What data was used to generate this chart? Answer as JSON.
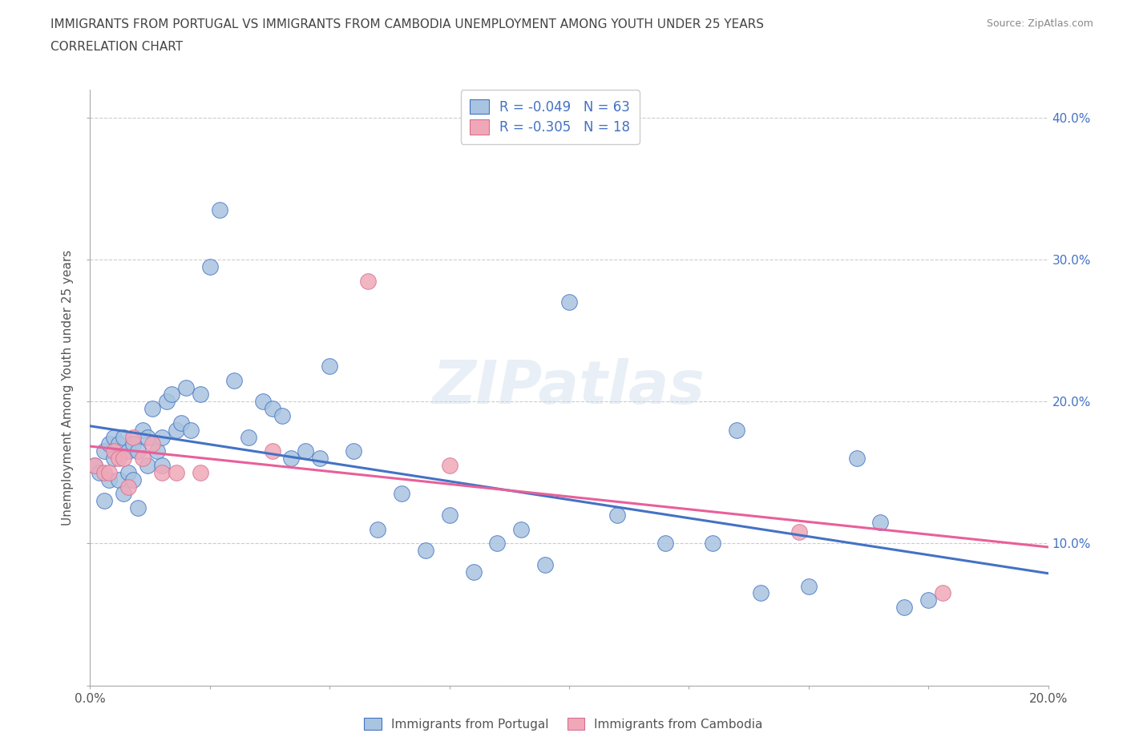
{
  "title_line1": "IMMIGRANTS FROM PORTUGAL VS IMMIGRANTS FROM CAMBODIA UNEMPLOYMENT AMONG YOUTH UNDER 25 YEARS",
  "title_line2": "CORRELATION CHART",
  "source": "Source: ZipAtlas.com",
  "ylabel": "Unemployment Among Youth under 25 years",
  "xlim": [
    0.0,
    0.2
  ],
  "ylim": [
    0.0,
    0.42
  ],
  "xticks": [
    0.0,
    0.025,
    0.05,
    0.075,
    0.1,
    0.125,
    0.15,
    0.175,
    0.2
  ],
  "yticks": [
    0.0,
    0.1,
    0.2,
    0.3,
    0.4
  ],
  "R_portugal": -0.049,
  "N_portugal": 63,
  "R_cambodia": -0.305,
  "N_cambodia": 18,
  "color_portugal": "#a8c4e0",
  "color_cambodia": "#f0a8b8",
  "line_color_portugal": "#4472c4",
  "line_color_cambodia": "#e8609a",
  "watermark": "ZIPatlas",
  "portugal_x": [
    0.001,
    0.002,
    0.003,
    0.003,
    0.004,
    0.004,
    0.005,
    0.005,
    0.006,
    0.006,
    0.007,
    0.007,
    0.008,
    0.008,
    0.009,
    0.009,
    0.01,
    0.01,
    0.011,
    0.012,
    0.012,
    0.013,
    0.014,
    0.015,
    0.015,
    0.016,
    0.017,
    0.018,
    0.019,
    0.02,
    0.021,
    0.023,
    0.025,
    0.027,
    0.03,
    0.033,
    0.036,
    0.038,
    0.04,
    0.042,
    0.045,
    0.048,
    0.05,
    0.055,
    0.06,
    0.065,
    0.07,
    0.075,
    0.08,
    0.085,
    0.09,
    0.095,
    0.1,
    0.11,
    0.12,
    0.13,
    0.135,
    0.14,
    0.15,
    0.16,
    0.165,
    0.17,
    0.175
  ],
  "portugal_y": [
    0.155,
    0.15,
    0.165,
    0.13,
    0.17,
    0.145,
    0.175,
    0.16,
    0.17,
    0.145,
    0.175,
    0.135,
    0.165,
    0.15,
    0.17,
    0.145,
    0.165,
    0.125,
    0.18,
    0.175,
    0.155,
    0.195,
    0.165,
    0.175,
    0.155,
    0.2,
    0.205,
    0.18,
    0.185,
    0.21,
    0.18,
    0.205,
    0.295,
    0.335,
    0.215,
    0.175,
    0.2,
    0.195,
    0.19,
    0.16,
    0.165,
    0.16,
    0.225,
    0.165,
    0.11,
    0.135,
    0.095,
    0.12,
    0.08,
    0.1,
    0.11,
    0.085,
    0.27,
    0.12,
    0.1,
    0.1,
    0.18,
    0.065,
    0.07,
    0.16,
    0.115,
    0.055,
    0.06
  ],
  "cambodia_x": [
    0.001,
    0.003,
    0.004,
    0.005,
    0.006,
    0.007,
    0.008,
    0.009,
    0.011,
    0.013,
    0.015,
    0.018,
    0.023,
    0.038,
    0.058,
    0.075,
    0.148,
    0.178
  ],
  "cambodia_y": [
    0.155,
    0.15,
    0.15,
    0.165,
    0.16,
    0.16,
    0.14,
    0.175,
    0.16,
    0.17,
    0.15,
    0.15,
    0.15,
    0.165,
    0.285,
    0.155,
    0.108,
    0.065
  ]
}
